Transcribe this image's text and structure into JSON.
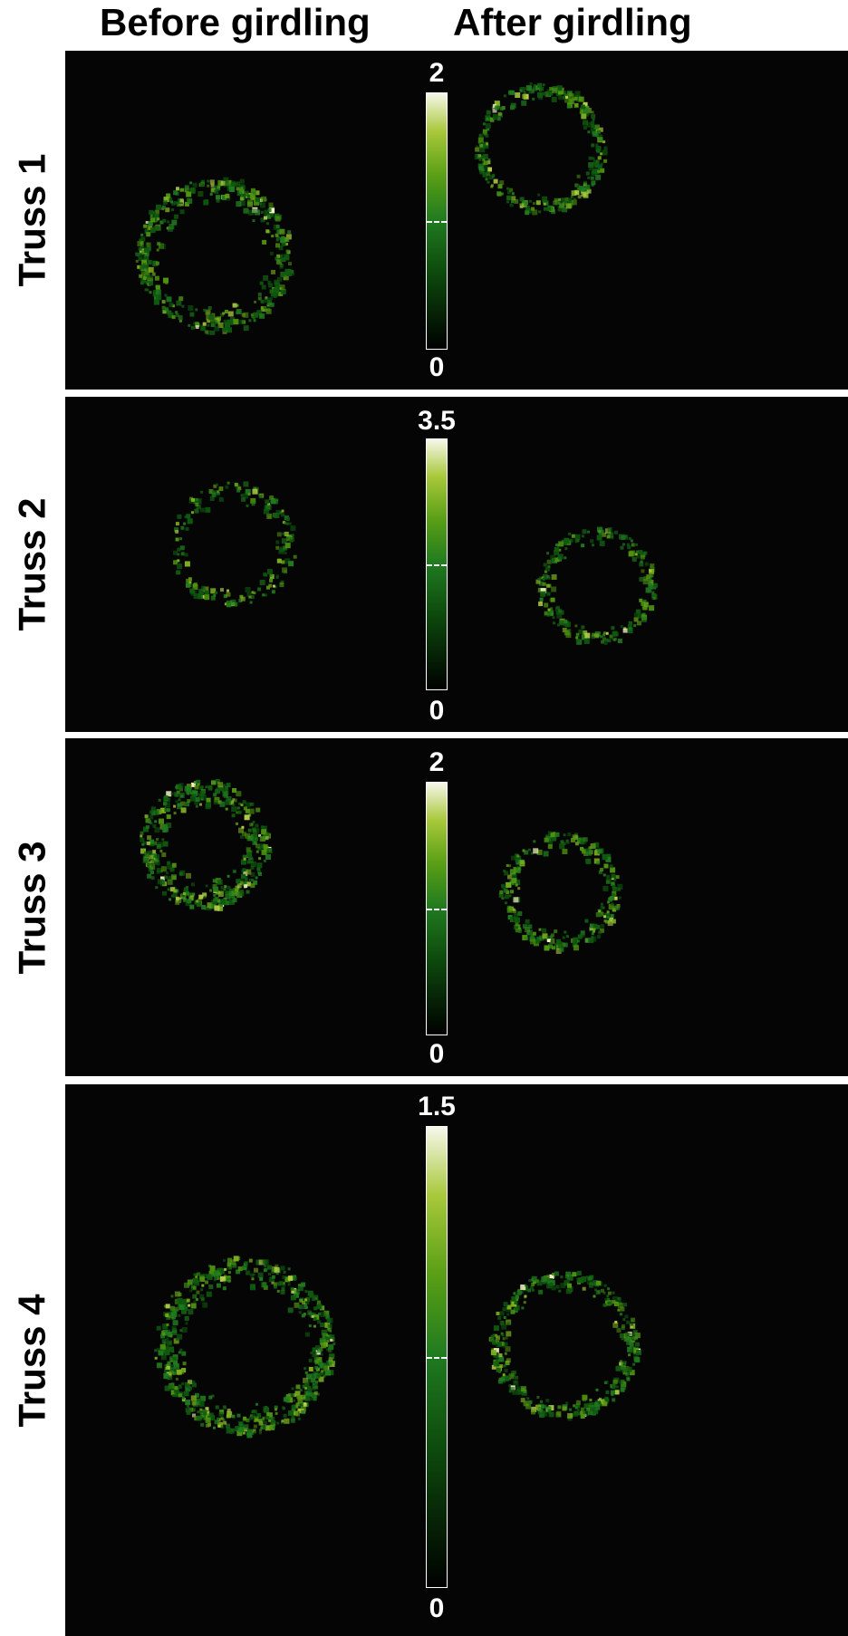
{
  "columns": {
    "before": "Before girdling",
    "after": "After girdling"
  },
  "colors": {
    "background": "#050505",
    "colorbar_low": "#000000",
    "colorbar_high": "#f7f7ea",
    "speckle": [
      "#0f5a0f",
      "#1f7a1f",
      "#4f9410",
      "#7fb020",
      "#b5d14a",
      "#fafac8"
    ]
  },
  "rows": [
    {
      "label": "Truss 1",
      "scale_max": "2",
      "scale_min": "0"
    },
    {
      "label": "Truss 2",
      "scale_max": "3.5",
      "scale_min": "0"
    },
    {
      "label": "Truss 3",
      "scale_max": "2",
      "scale_min": "0"
    },
    {
      "label": "Truss 4",
      "scale_max": "1.5",
      "scale_min": "0"
    }
  ]
}
